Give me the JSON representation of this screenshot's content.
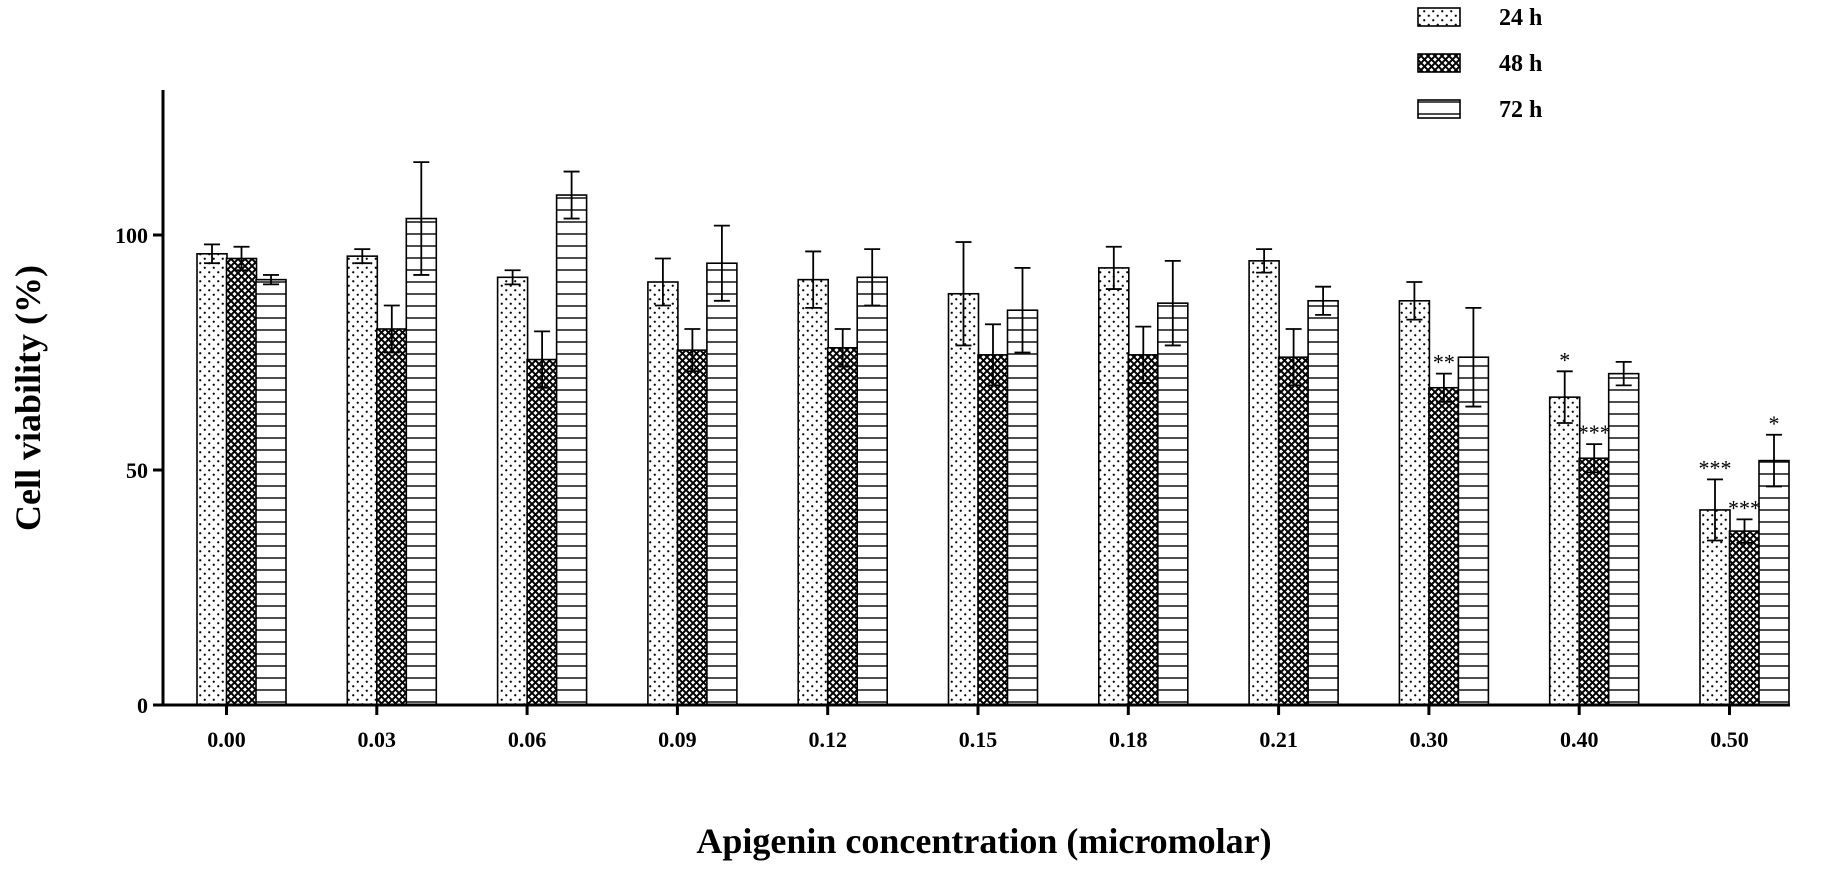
{
  "chart_data": {
    "type": "bar",
    "title": "",
    "xlabel": "Apigenin concentration (micromolar)",
    "ylabel": "Cell viability (%)",
    "ylim": [
      0,
      130
    ],
    "yticks": [
      0,
      50,
      100
    ],
    "yticklabels": [
      "0",
      "50",
      "100"
    ],
    "categories": [
      "0.00",
      "0.03",
      "0.06",
      "0.09",
      "0.12",
      "0.15",
      "0.18",
      "0.21",
      "0.30",
      "0.40",
      "0.50"
    ],
    "legend_position": "top-right",
    "series": [
      {
        "name": "24 h",
        "pattern": "dots",
        "values": [
          96,
          95.5,
          91,
          90,
          90.5,
          87.5,
          93,
          94.5,
          86,
          65.5,
          41.5
        ],
        "errors": [
          2,
          1.5,
          1.5,
          5,
          6,
          11,
          4.5,
          2.5,
          4,
          5.5,
          6.5
        ],
        "annotations": [
          "",
          "",
          "",
          "",
          "",
          "",
          "",
          "",
          "",
          "*",
          "***"
        ]
      },
      {
        "name": "48 h",
        "pattern": "crosshatch",
        "values": [
          95,
          80,
          73.5,
          75.5,
          76,
          74.5,
          74.5,
          74,
          67.5,
          52.5,
          37
        ],
        "errors": [
          2.5,
          5,
          6,
          4.5,
          4,
          6.5,
          6,
          6,
          3,
          3,
          2.5
        ],
        "annotations": [
          "",
          "",
          "",
          "",
          "",
          "",
          "",
          "",
          "**",
          "***",
          "***"
        ]
      },
      {
        "name": "72 h",
        "pattern": "hlines",
        "values": [
          90.5,
          103.5,
          108.5,
          94,
          91,
          84,
          85.5,
          86,
          74,
          70.5,
          52
        ],
        "errors": [
          1,
          12,
          5,
          8,
          6,
          9,
          9,
          3,
          10.5,
          2.5,
          5.5
        ],
        "annotations": [
          "",
          "",
          "",
          "",
          "",
          "",
          "",
          "",
          "",
          "",
          "*"
        ]
      }
    ]
  }
}
